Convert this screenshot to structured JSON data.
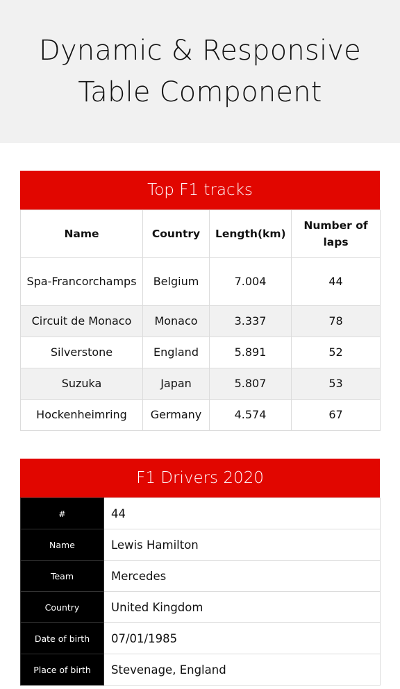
{
  "page": {
    "title_line1": "Dynamic & Responsive",
    "title_line2": "Table Component"
  },
  "tracks": {
    "caption": "Top F1 tracks",
    "headers": [
      "Name",
      "Country",
      "Length(km)",
      "Number of laps"
    ],
    "rows": [
      [
        "Spa-Francorchamps",
        "Belgium",
        "7.004",
        "44"
      ],
      [
        "Circuit de Monaco",
        "Monaco",
        "3.337",
        "78"
      ],
      [
        "Silverstone",
        "England",
        "5.891",
        "52"
      ],
      [
        "Suzuka",
        "Japan",
        "5.807",
        "53"
      ],
      [
        "Hockenheimring",
        "Germany",
        "4.574",
        "67"
      ]
    ]
  },
  "drivers": {
    "caption": "F1 Drivers 2020",
    "rows": [
      {
        "label": "#",
        "value": "44"
      },
      {
        "label": "Name",
        "value": "Lewis Hamilton"
      },
      {
        "label": "Team",
        "value": "Mercedes"
      },
      {
        "label": "Country",
        "value": "United Kingdom"
      },
      {
        "label": "Date of birth",
        "value": "07/01/1985"
      },
      {
        "label": "Place of birth",
        "value": "Stevenage, England"
      }
    ]
  },
  "colors": {
    "accent": "#e10600",
    "hero_bg": "#f1f1f1",
    "stripe": "#f1f1f1",
    "label_bg": "#000000"
  }
}
